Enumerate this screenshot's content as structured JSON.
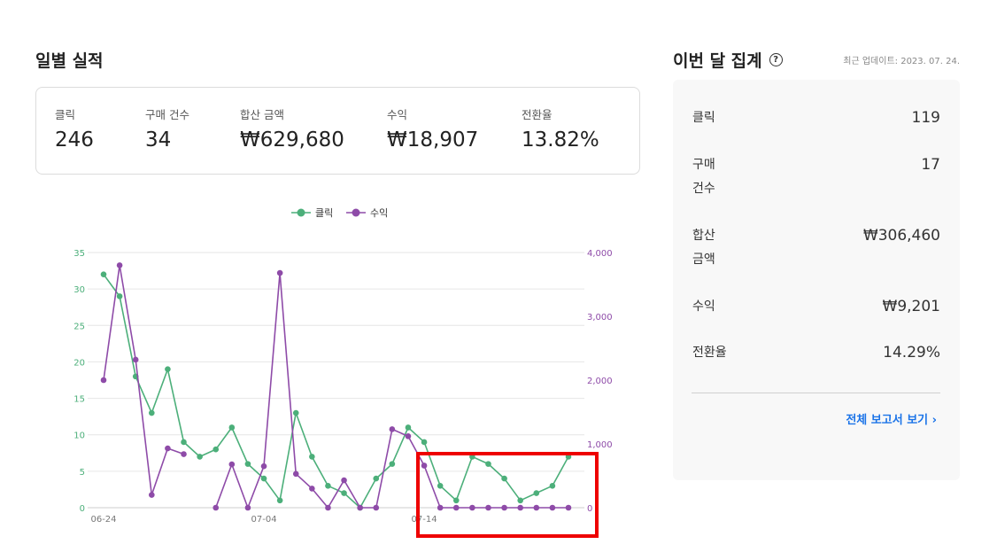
{
  "daily": {
    "title": "일별 실적",
    "stats": [
      {
        "label": "클릭",
        "value": "246"
      },
      {
        "label": "구매 건수",
        "value": "34"
      },
      {
        "label": "합산 금액",
        "value": "₩629,680"
      },
      {
        "label": "수익",
        "value": "₩18,907"
      },
      {
        "label": "전환율",
        "value": "13.82%"
      }
    ]
  },
  "monthly": {
    "title": "이번 달 집계",
    "help_icon": "?",
    "updated": "최근 업데이트: 2023. 07. 24.",
    "rows": [
      {
        "label": "클릭",
        "value": "119"
      },
      {
        "label": "구매\n건수",
        "value": "17"
      },
      {
        "label": "합산\n금액",
        "value": "₩306,460"
      },
      {
        "label": "수익",
        "value": "₩9,201"
      },
      {
        "label": "전환율",
        "value": "14.29%"
      }
    ],
    "report_link": "전체 보고서 보기 ›"
  },
  "colors": {
    "clicks": "#4caf7a",
    "revenue": "#8e4ba8"
  },
  "chart_data": {
    "type": "line",
    "x_ticks": [
      "06-24",
      "07-04",
      "07-14"
    ],
    "x_tick_index": [
      0,
      10,
      20
    ],
    "legend": "top-center",
    "grid": true,
    "y_left": {
      "ticks": [
        "0",
        "5",
        "10",
        "15",
        "20",
        "25",
        "30",
        "35"
      ],
      "range": [
        0,
        35
      ]
    },
    "y_right": {
      "ticks": [
        "0",
        "1,000",
        "2,000",
        "3,000",
        "4,000"
      ],
      "range": [
        0,
        4000
      ]
    },
    "series": [
      {
        "name": "클릭",
        "axis": "left",
        "color": "#4caf7a",
        "values": [
          32,
          29,
          18,
          13,
          19,
          9,
          7,
          8,
          11,
          6,
          4,
          1,
          13,
          7,
          3,
          2,
          0,
          4,
          6,
          11,
          9,
          3,
          1,
          7,
          6,
          4,
          1,
          2,
          3,
          7
        ]
      },
      {
        "name": "수익",
        "axis": "right",
        "color": "#8e4ba8",
        "values": [
          2000,
          3800,
          2320,
          200,
          930,
          840,
          null,
          0,
          680,
          0,
          650,
          3680,
          530,
          300,
          0,
          430,
          0,
          0,
          1230,
          1120,
          660,
          0,
          0,
          0,
          0,
          0,
          0,
          0,
          0,
          0
        ]
      }
    ]
  }
}
